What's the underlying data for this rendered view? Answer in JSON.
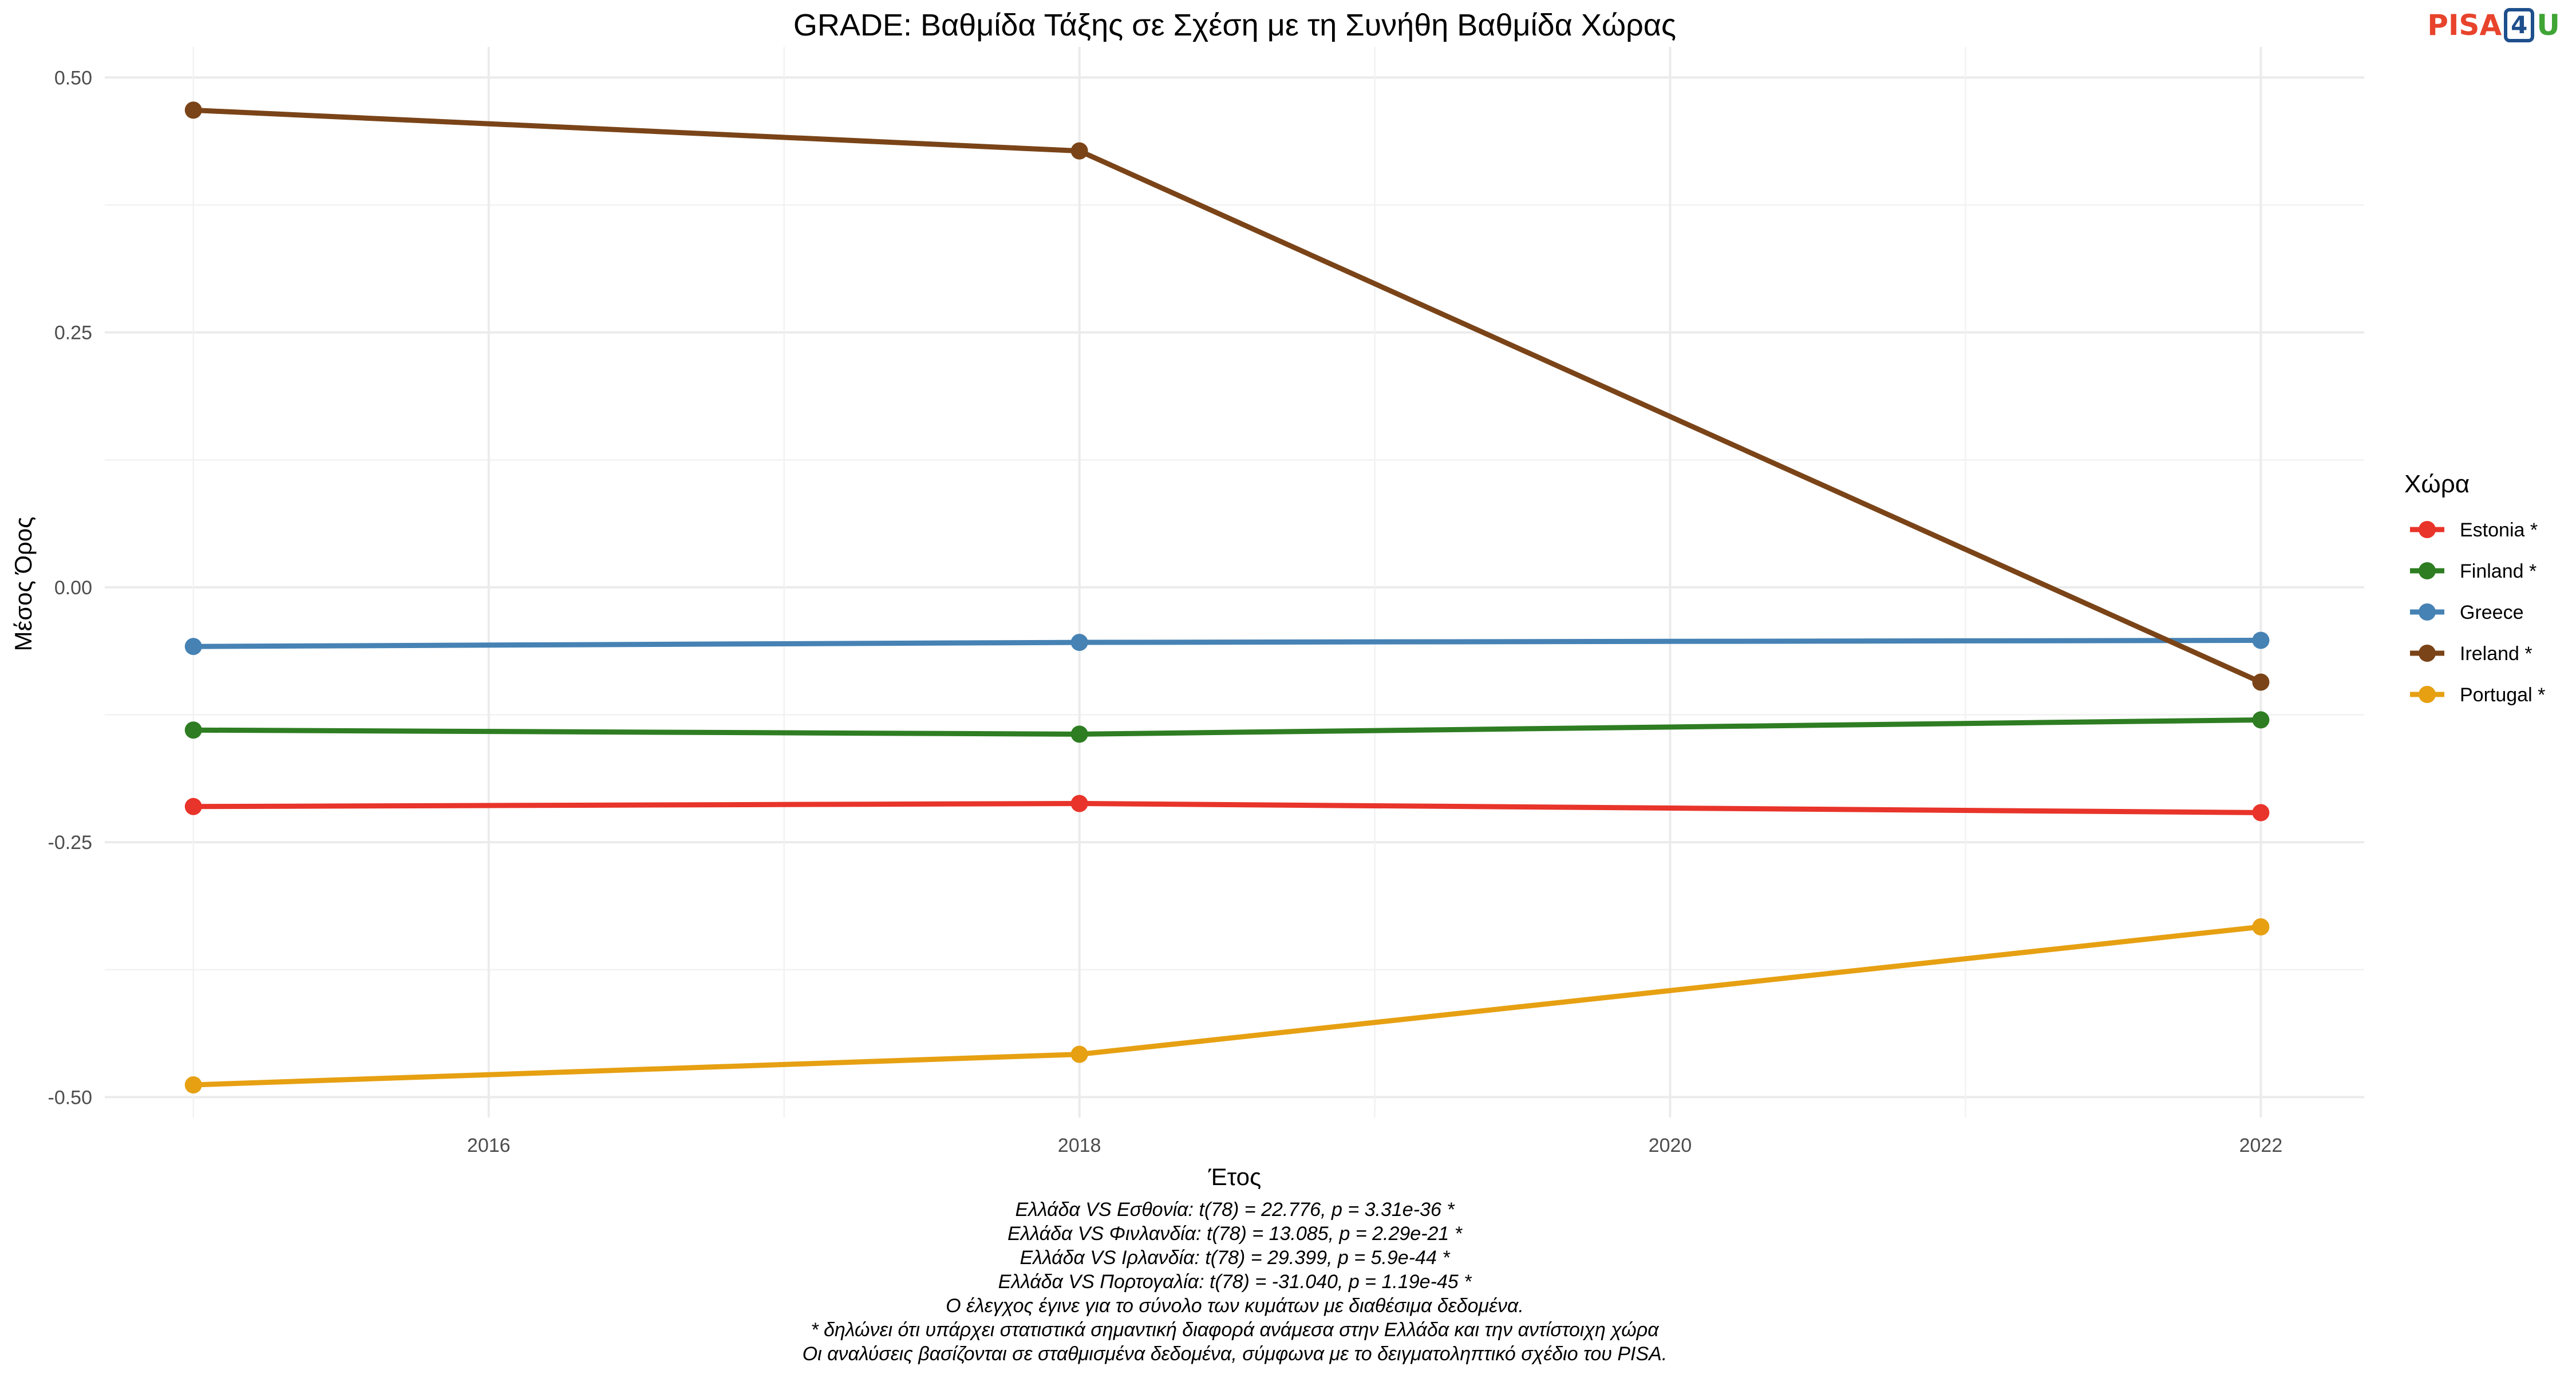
{
  "brand": {
    "part1": "PISA",
    "part2": "4",
    "part3": "U"
  },
  "chart_data": {
    "type": "line",
    "title": "GRADE: Βαθμίδα Τάξης σε Σχέση με τη Συνήθη Βαθμίδα Χώρας",
    "xlabel": "Έτος",
    "ylabel": "Μέσος Όρος",
    "xlim": [
      2014.7,
      2022.35
    ],
    "ylim": [
      -0.52,
      0.53
    ],
    "xticks": [
      2016,
      2018,
      2020,
      2022
    ],
    "yticks": [
      -0.5,
      -0.25,
      0.0,
      0.25,
      0.5
    ],
    "ytick_labels": [
      "-0.50",
      "-0.25",
      "0.00",
      "0.25",
      "0.50"
    ],
    "grid": true,
    "legend": {
      "title": "Χώρα",
      "position": "right"
    },
    "x": [
      2015,
      2018,
      2022
    ],
    "series": [
      {
        "name": "Estonia *",
        "color": "#e8342a",
        "values": [
          -0.215,
          -0.212,
          -0.221
        ]
      },
      {
        "name": "Finland *",
        "color": "#2e7d22",
        "values": [
          -0.14,
          -0.144,
          -0.13
        ]
      },
      {
        "name": "Greece",
        "color": "#4682b4",
        "values": [
          -0.058,
          -0.054,
          -0.052
        ]
      },
      {
        "name": "Ireland *",
        "color": "#7a4418",
        "values": [
          0.468,
          0.428,
          -0.093
        ]
      },
      {
        "name": "Portugal *",
        "color": "#e6a012",
        "values": [
          -0.488,
          -0.458,
          -0.333
        ]
      }
    ],
    "notes": [
      "Ελλάδα VS Εσθονία: t(78) = 22.776, p = 3.31e-36 *",
      "Ελλάδα VS Φινλανδία: t(78) = 13.085, p = 2.29e-21 *",
      "Ελλάδα VS Ιρλανδία: t(78) = 29.399, p = 5.9e-44 *",
      "Ελλάδα VS Πορτογαλία: t(78) = -31.040, p = 1.19e-45 *",
      "Ο έλεγχος έγινε για το σύνολο των κυμάτων με διαθέσιμα δεδομένα.",
      "* δηλώνει ότι υπάρχει στατιστικά σημαντική διαφορά ανάμεσα στην Ελλάδα και την αντίστοιχη χώρα",
      "Οι αναλύσεις βασίζονται σε σταθμισμένα δεδομένα, σύμφωνα με το δειγματοληπτικό σχέδιο του PISA."
    ]
  }
}
